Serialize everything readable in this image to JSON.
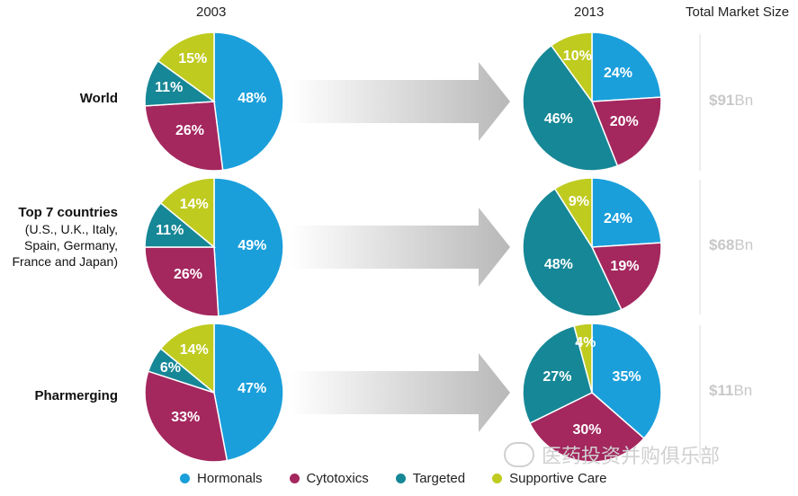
{
  "headers": {
    "year_left": "2003",
    "year_right": "2013",
    "market_title": "Total Market Size"
  },
  "colors": {
    "Hormonals": "#1a9fdb",
    "Cytotoxics": "#a4275e",
    "Targeted": "#168796",
    "Supportive Care": "#bfcb1f"
  },
  "rows": [
    {
      "label": "World",
      "sublabel": [],
      "market_value": "$91",
      "market_unit": "Bn"
    },
    {
      "label": "Top 7 countries",
      "sublabel": [
        "(U.S., U.K., Italy,",
        "Spain, Germany,",
        "France and Japan)"
      ],
      "market_value": "$68",
      "market_unit": "Bn"
    },
    {
      "label": "Pharmerging",
      "sublabel": [],
      "market_value": "$11",
      "market_unit": "Bn"
    }
  ],
  "chart_data": {
    "type": "pie",
    "title": "",
    "categories": [
      "Hormonals",
      "Cytotoxics",
      "Targeted",
      "Supportive Care"
    ],
    "years": [
      "2003",
      "2013"
    ],
    "series": [
      {
        "name": "World 2003",
        "values": [
          48,
          26,
          11,
          15
        ],
        "labels": [
          "48%",
          "26%",
          "11%",
          "15%"
        ]
      },
      {
        "name": "World 2013",
        "values": [
          24,
          20,
          46,
          10
        ],
        "labels": [
          "24%",
          "20%",
          "46%",
          "10%"
        ]
      },
      {
        "name": "Top 7 countries 2003",
        "values": [
          49,
          26,
          11,
          14
        ],
        "labels": [
          "49%",
          "26%",
          "11%",
          "14%"
        ]
      },
      {
        "name": "Top 7 countries 2013",
        "values": [
          24,
          19,
          48,
          9
        ],
        "labels": [
          "24%",
          "19%",
          "48%",
          "9%"
        ]
      },
      {
        "name": "Pharmerging 2003",
        "values": [
          47,
          33,
          6,
          14
        ],
        "labels": [
          "47%",
          "33%",
          "6%",
          "14%"
        ]
      },
      {
        "name": "Pharmerging 2013",
        "values": [
          35,
          30,
          27,
          4
        ],
        "labels": [
          "35%",
          "30%",
          "27%",
          "4%"
        ]
      }
    ],
    "total_market_size": [
      "$91Bn",
      "$68Bn",
      "$11Bn"
    ],
    "legend_position": "bottom"
  },
  "legend": [
    {
      "label": "Hormonals",
      "color": "#1a9fdb"
    },
    {
      "label": "Cytotoxics",
      "color": "#a4275e"
    },
    {
      "label": "Targeted",
      "color": "#168796"
    },
    {
      "label": "Supportive Care",
      "color": "#bfcb1f"
    }
  ],
  "watermark": "医药投资并购俱乐部"
}
